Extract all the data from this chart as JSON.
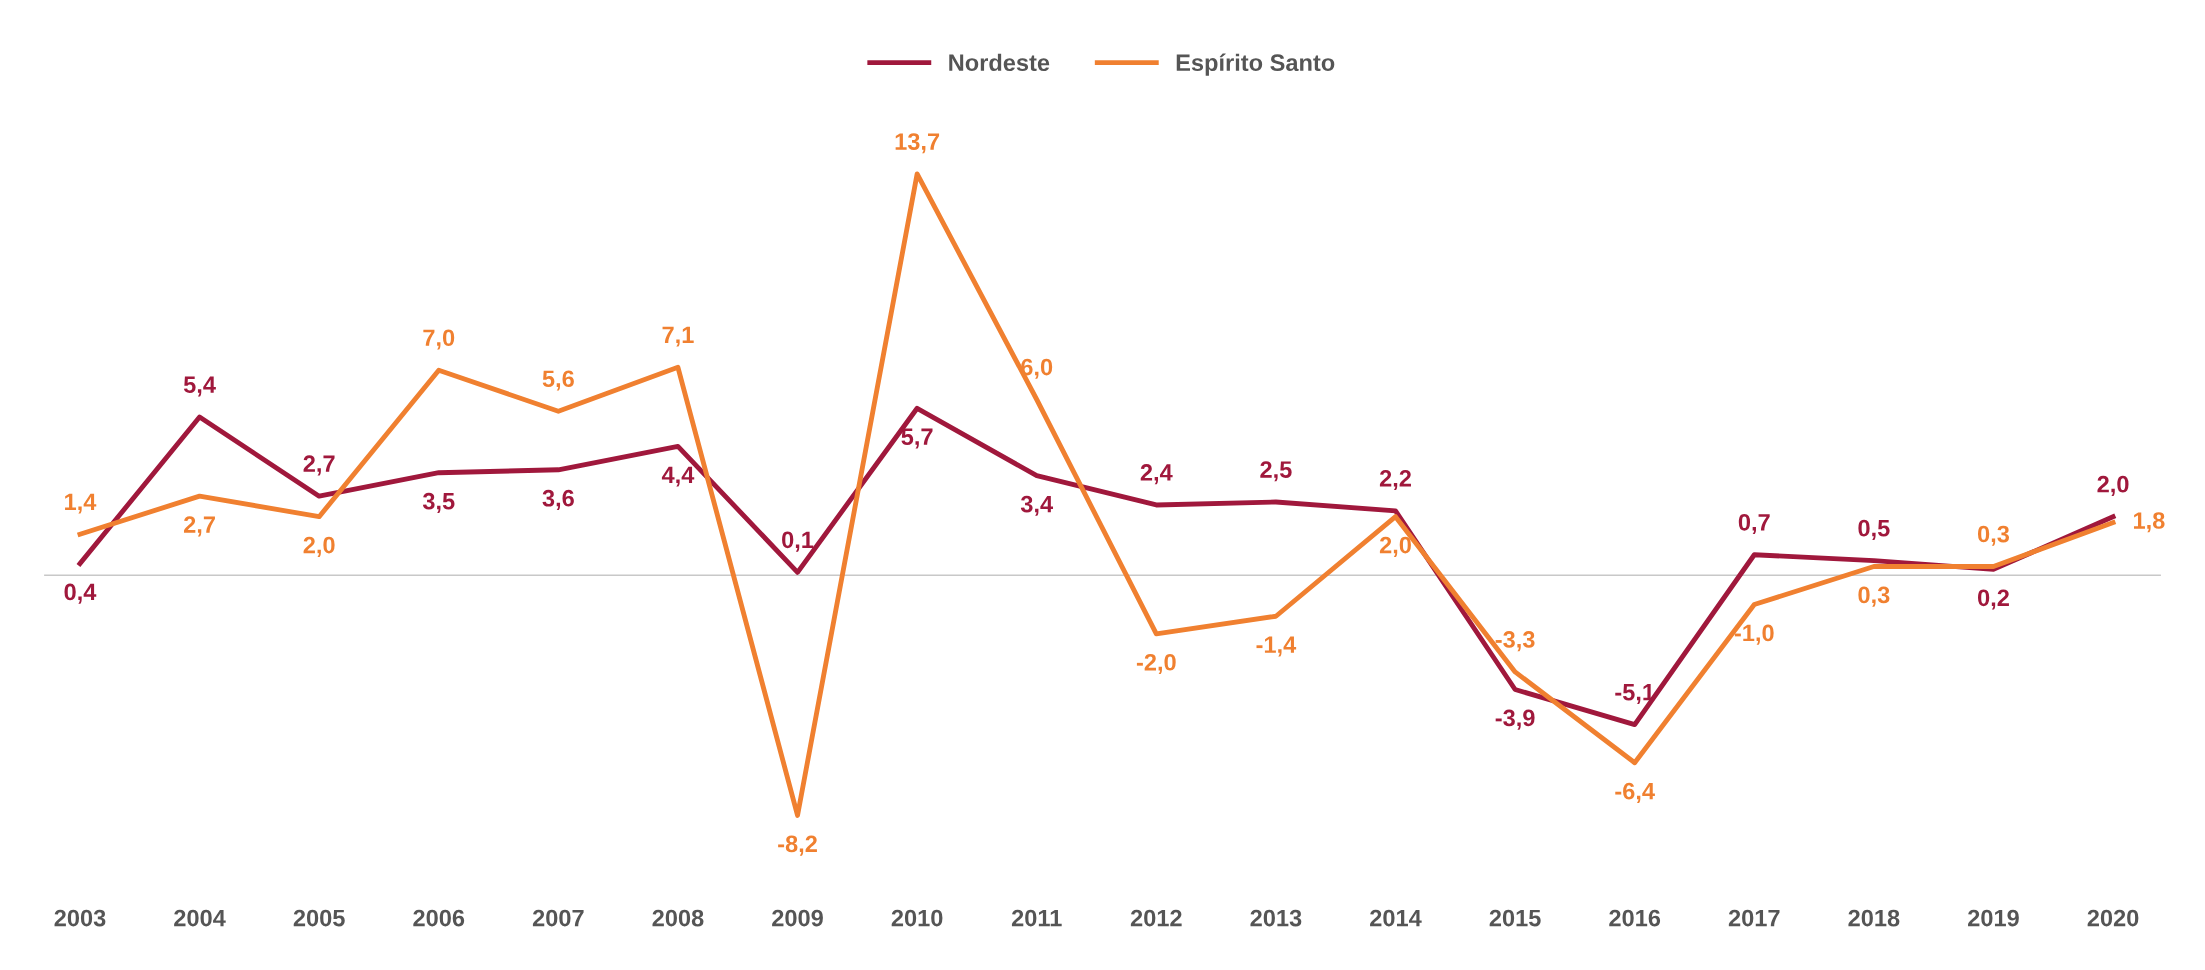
{
  "chart_data": {
    "type": "line",
    "categories": [
      "2003",
      "2004",
      "2005",
      "2006",
      "2007",
      "2008",
      "2009",
      "2010",
      "2011",
      "2012",
      "2013",
      "2014",
      "2015",
      "2016",
      "2017",
      "2018",
      "2019",
      "2020"
    ],
    "series": [
      {
        "name": "Nordeste",
        "color": "#a0183c",
        "values": [
          0.4,
          5.4,
          2.7,
          3.5,
          3.6,
          4.4,
          0.1,
          5.7,
          3.4,
          2.4,
          2.5,
          2.2,
          -3.9,
          -5.1,
          0.7,
          0.5,
          0.2,
          2.0
        ],
        "value_labels": [
          "0,4",
          "5,4",
          "2,7",
          "3,5",
          "3,6",
          "4,4",
          "0,1",
          "5,7",
          "3,4",
          "2,4",
          "2,5",
          "2,2",
          "-3,9",
          "-5,1",
          "0,7",
          "0,5",
          "0,2",
          "2,0"
        ]
      },
      {
        "name": "Espírito Santo",
        "color": "#f08030",
        "values": [
          1.4,
          2.7,
          2.0,
          7.0,
          5.6,
          7.1,
          -8.2,
          13.7,
          6.0,
          -2.0,
          -1.4,
          2.0,
          -3.3,
          -6.4,
          -1.0,
          0.3,
          0.3,
          1.8
        ],
        "value_labels": [
          "1,4",
          "2,7",
          "2,0",
          "7,0",
          "5,6",
          "7,1",
          "-8,2",
          "13,7",
          "6,0",
          "-2,0",
          "-1,4",
          "2,0",
          "-3,3",
          "-6,4",
          "-1,0",
          "0,3",
          "0,3",
          "1,8"
        ]
      }
    ],
    "ref_lines": [
      {
        "axis": "y",
        "value": 0,
        "color": "#c8c8c8"
      }
    ],
    "legend": "top",
    "grid": false,
    "marker": "none",
    "line_style": "solid",
    "tick_labels": "x"
  }
}
